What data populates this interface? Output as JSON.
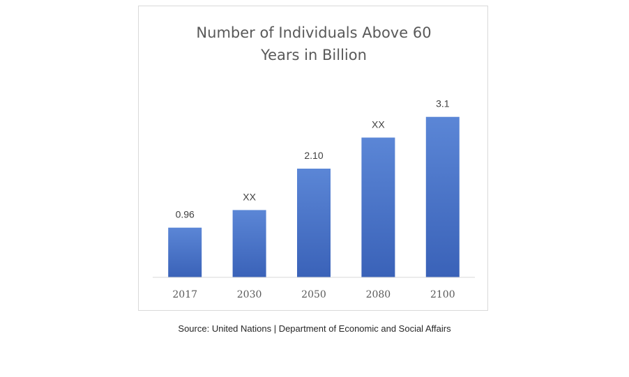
{
  "chart_data": {
    "type": "bar",
    "title_lines": [
      "Number of Individuals Above 60",
      "Years in Billion"
    ],
    "categories": [
      "2017",
      "2030",
      "2050",
      "2080",
      "2100"
    ],
    "values": [
      0.96,
      1.3,
      2.1,
      2.7,
      3.1
    ],
    "data_labels": [
      "0.96",
      "XX",
      "2.10",
      "XX",
      "3.1"
    ],
    "xlabel": "",
    "ylabel": "",
    "ylim": [
      0,
      3.5
    ],
    "grid": false,
    "legend": "none",
    "bar_color": "#4472c4",
    "bar_gradient_top": "#5b86d6",
    "bar_gradient_bottom": "#3a62b8"
  },
  "source": "Source: United Nations | Department of Economic and Social Affairs"
}
